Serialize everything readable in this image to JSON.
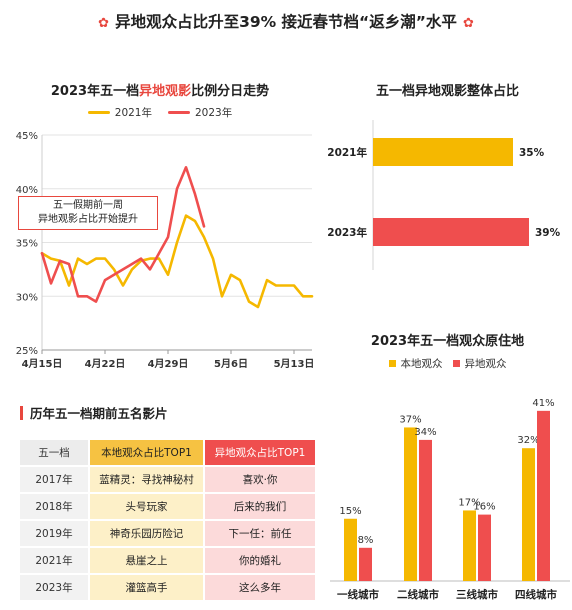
{
  "header": {
    "title": "异地观众占比升至39% 接近春节档“返乡潮”水平",
    "flower": "✿"
  },
  "chart_data": [
    {
      "type": "line",
      "title_prefix": "2023年五一档",
      "title_highlight": "异地观影",
      "title_suffix": "比例分日走势",
      "ylim": [
        25,
        45
      ],
      "yticks": [
        "25%",
        "30%",
        "35%",
        "40%",
        "45%"
      ],
      "xticks": [
        "4月15日",
        "4月22日",
        "4月29日",
        "5月6日",
        "5月13日"
      ],
      "x_days": [
        "2023-04-15",
        "2023-04-16",
        "2023-04-17",
        "2023-04-18",
        "2023-04-19",
        "2023-04-20",
        "2023-04-21",
        "2023-04-22",
        "2023-04-23",
        "2023-04-24",
        "2023-04-25",
        "2023-04-26",
        "2023-04-27",
        "2023-04-28",
        "2023-04-29",
        "2023-04-30",
        "2023-05-01",
        "2023-05-02",
        "2023-05-03",
        "2023-05-04",
        "2023-05-05",
        "2023-05-06",
        "2023-05-07",
        "2023-05-08",
        "2023-05-09",
        "2023-05-10",
        "2023-05-11",
        "2023-05-12",
        "2023-05-13",
        "2023-05-14",
        "2023-05-15"
      ],
      "series": [
        {
          "name": "2021年",
          "color": "#f5b800",
          "values": [
            34.0,
            33.5,
            33.3,
            31.0,
            33.5,
            33.0,
            33.5,
            33.5,
            32.5,
            31.0,
            32.5,
            33.3,
            33.5,
            33.5,
            32.0,
            35.0,
            37.5,
            37.0,
            35.5,
            33.5,
            30.0,
            32.0,
            31.5,
            29.5,
            29.0,
            31.5,
            31.0,
            31.0,
            31.0,
            30.0,
            30.0
          ]
        },
        {
          "name": "2023年",
          "color": "#ef4e4e",
          "values": [
            34.0,
            31.2,
            33.3,
            33.0,
            30.0,
            30.0,
            29.5,
            31.5,
            32.0,
            32.5,
            33.0,
            33.5,
            32.5,
            34.0,
            35.5,
            40.0,
            42.0,
            39.5,
            36.5,
            null,
            null,
            null,
            null,
            null,
            null,
            null,
            null,
            null,
            null,
            null,
            null
          ]
        }
      ],
      "annotation": {
        "line1": "五一假期前一周",
        "line2": "异地观影占比开始提升"
      }
    },
    {
      "type": "bar",
      "orientation": "horizontal",
      "title": "五一档异地观影整体占比",
      "categories": [
        "2021年",
        "2023年"
      ],
      "values": [
        35,
        39
      ],
      "labels": [
        "35%",
        "39%"
      ],
      "colors": [
        "#f5b800",
        "#ef4e4e"
      ]
    },
    {
      "type": "bar",
      "title": "2023年五一档观众原住地",
      "categories": [
        "一线城市",
        "二线城市",
        "三线城市",
        "四线城市"
      ],
      "series": [
        {
          "name": "本地观众",
          "color": "#f5b800",
          "values": [
            15,
            37,
            17,
            32
          ]
        },
        {
          "name": "异地观众",
          "color": "#ef4e4e",
          "values": [
            8,
            34,
            16,
            41
          ]
        }
      ]
    }
  ],
  "table": {
    "title": "历年五一档期前五名影片",
    "headers": [
      "五一档",
      "本地观众占比TOP1",
      "异地观众占比TOP1"
    ],
    "rows": [
      [
        "2017年",
        "蓝精灵：寻找神秘村",
        "喜欢·你"
      ],
      [
        "2018年",
        "头号玩家",
        "后来的我们"
      ],
      [
        "2019年",
        "神奇乐园历险记",
        "下一任：前任"
      ],
      [
        "2021年",
        "悬崖之上",
        "你的婚礼"
      ],
      [
        "2023年",
        "灌篮高手",
        "这么多年"
      ]
    ]
  }
}
